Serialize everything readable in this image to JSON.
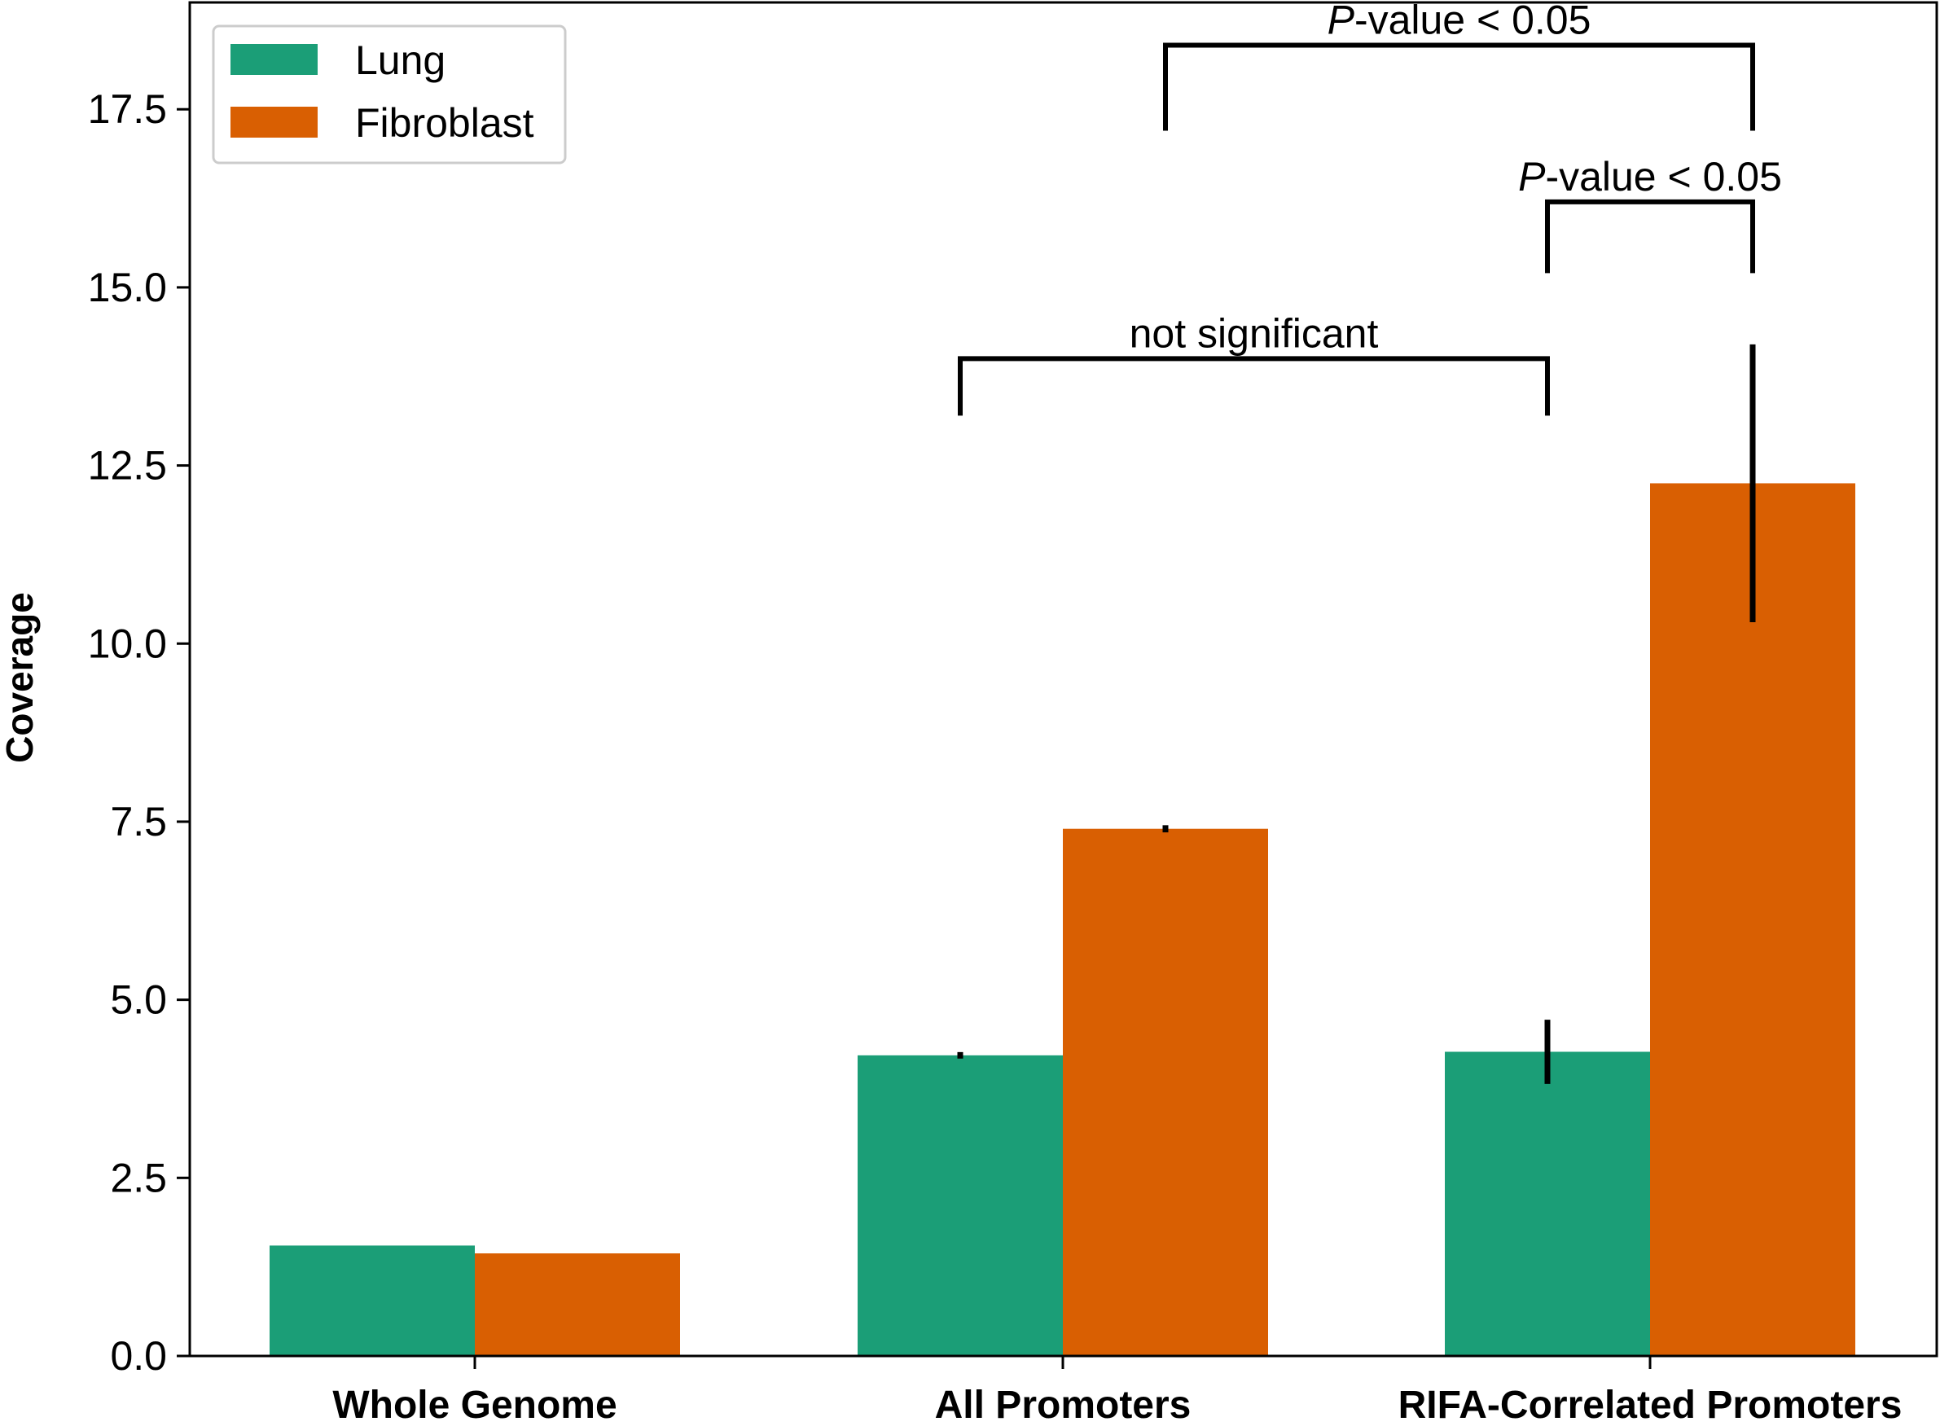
{
  "chart_data": {
    "type": "bar",
    "title": "",
    "xlabel": "",
    "ylabel": "Coverage",
    "ylim": [
      0,
      19
    ],
    "yticks": [
      "0.0",
      "2.5",
      "5.0",
      "7.5",
      "10.0",
      "12.5",
      "15.0",
      "17.5"
    ],
    "ytick_values": [
      0,
      2.5,
      5,
      7.5,
      10,
      12.5,
      15,
      17.5
    ],
    "categories": [
      "Whole Genome",
      "All Promoters",
      "RIFA-Correlated Promoters"
    ],
    "series": [
      {
        "name": "Lung",
        "color": "#1b9e77",
        "values": [
          1.55,
          4.22,
          4.27
        ],
        "errors": [
          0.0,
          0.03,
          0.45
        ]
      },
      {
        "name": "Fibroblast",
        "color": "#d95f02",
        "values": [
          1.44,
          7.4,
          12.25
        ],
        "errors": [
          0.0,
          0.05,
          1.95
        ]
      }
    ],
    "legend": {
      "position": "top-left",
      "entries": [
        "Lung",
        "Fibroblast"
      ]
    },
    "annotations": [
      {
        "label_italic": "P",
        "label_rest": "-value < 0.05",
        "from": {
          "category": 1,
          "series": 1
        },
        "to": {
          "category": 2,
          "series": 1
        },
        "bracket_y": 18.4,
        "left_bottom": 17.2,
        "right_bottom": 17.2
      },
      {
        "label_italic": "P",
        "label_rest": "-value < 0.05",
        "from": {
          "category": 2,
          "series": 0
        },
        "to": {
          "category": 2,
          "series": 1
        },
        "bracket_y": 16.2,
        "left_bottom": 15.2,
        "right_bottom": 15.2
      },
      {
        "label_italic": "",
        "label_rest": "not significant",
        "from": {
          "category": 1,
          "series": 0
        },
        "to": {
          "category": 2,
          "series": 0
        },
        "bracket_y": 14.0,
        "left_bottom": 13.2,
        "right_bottom": 13.2
      }
    ]
  }
}
